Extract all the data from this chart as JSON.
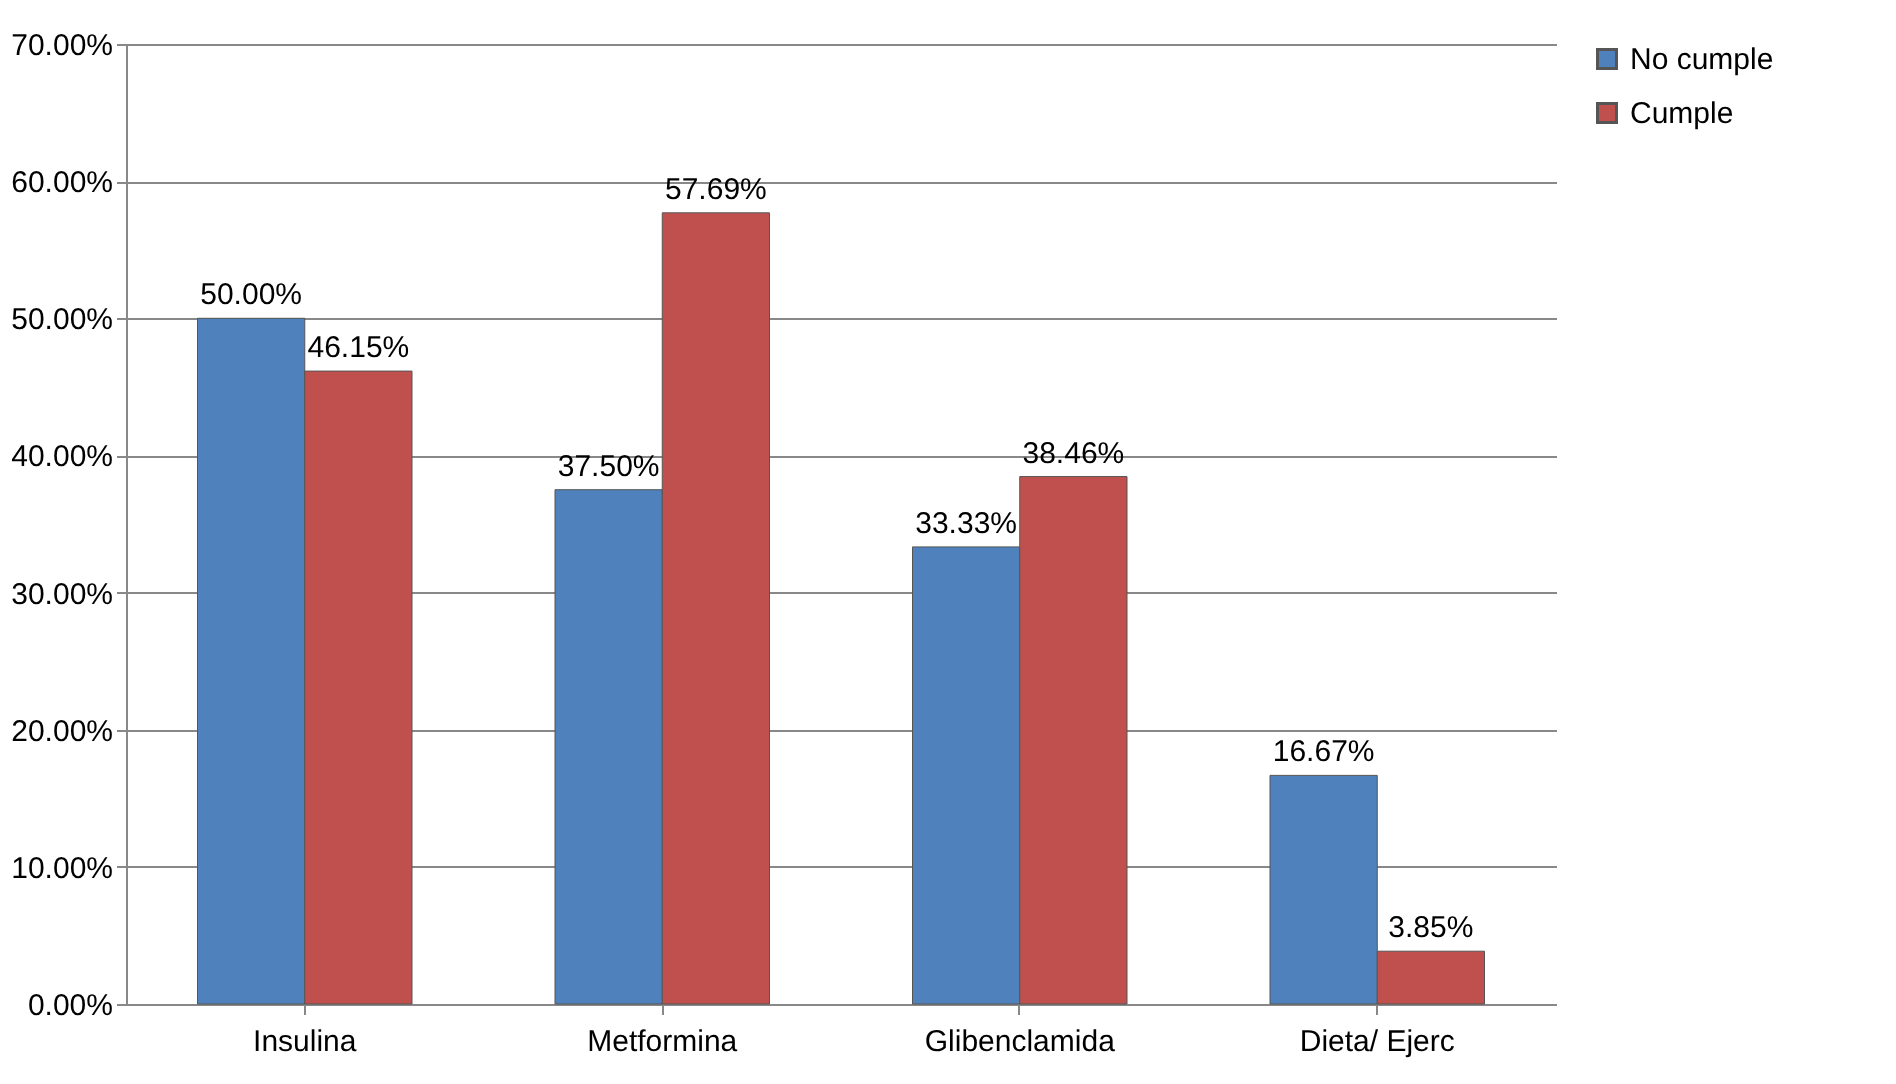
{
  "chart_data": {
    "type": "bar",
    "categories": [
      "Insulina",
      "Metformina",
      "Glibenclamida",
      "Dieta/ Ejerc"
    ],
    "series": [
      {
        "name": "No cumple",
        "color": "#4f81bd",
        "values": [
          50,
          37.5,
          33.33,
          16.67
        ],
        "value_labels": [
          "50.00%",
          "37.50%",
          "33.33%",
          "16.67%"
        ]
      },
      {
        "name": "Cumple",
        "color": "#c0504d",
        "values": [
          46.15,
          57.69,
          38.46,
          3.85
        ],
        "value_labels": [
          "46.15%",
          "57.69%",
          "38.46%",
          "3.85%"
        ]
      }
    ],
    "ylim": [
      0,
      70
    ],
    "yticks": [
      {
        "value": 0,
        "label": "0.00%"
      },
      {
        "value": 10,
        "label": "10.00%"
      },
      {
        "value": 20,
        "label": "20.00%"
      },
      {
        "value": 30,
        "label": "30.00%"
      },
      {
        "value": 40,
        "label": "40.00%"
      },
      {
        "value": 50,
        "label": "50.00%"
      },
      {
        "value": 60,
        "label": "60.00%"
      },
      {
        "value": 70,
        "label": "70.00%"
      }
    ],
    "grid": "y",
    "legend": "right"
  }
}
